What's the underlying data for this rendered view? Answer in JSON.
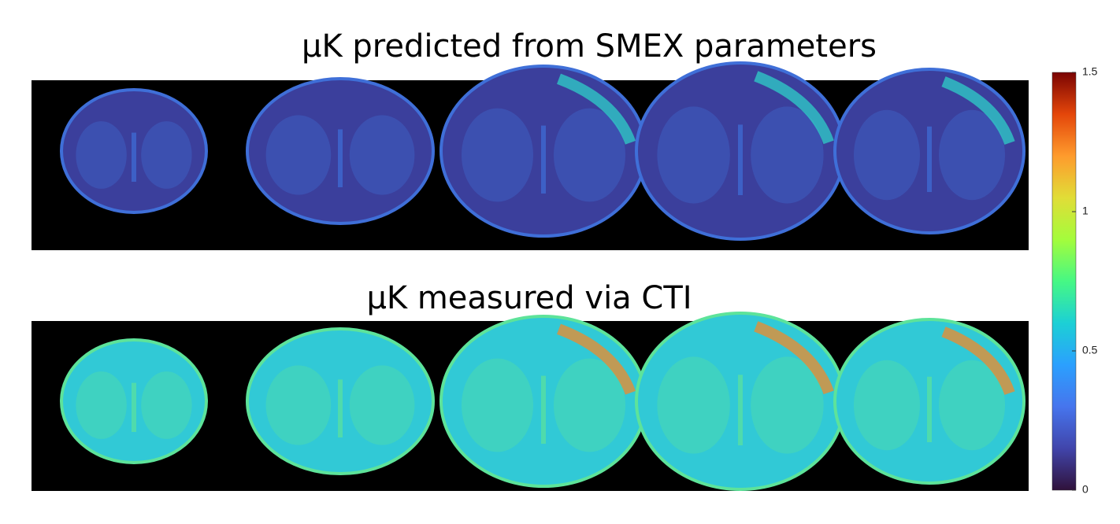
{
  "chart_data": {
    "type": "colorbar",
    "panels": [
      {
        "title": "μK predicted from SMEX parameters"
      },
      {
        "title": "μK measured via CTI"
      }
    ],
    "ylim": [
      0,
      1.5
    ],
    "yticks": [
      0,
      0.5,
      1,
      1.5
    ]
  }
}
